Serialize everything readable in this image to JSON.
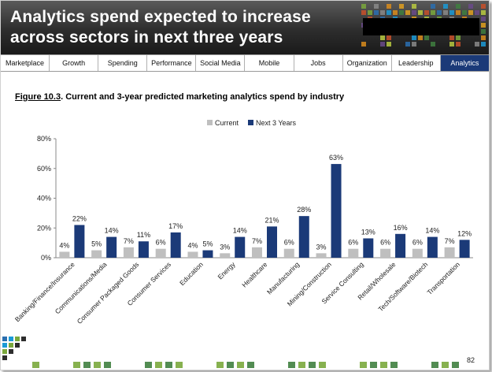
{
  "header": {
    "title_line1": "Analytics spend expected to increase",
    "title_line2": "across sectors in next three years"
  },
  "tabs": [
    {
      "label": "Marketplace",
      "active": false
    },
    {
      "label": "Growth",
      "active": false
    },
    {
      "label": "Spending",
      "active": false
    },
    {
      "label": "Performance",
      "active": false
    },
    {
      "label": "Social Media",
      "active": false
    },
    {
      "label": "Mobile",
      "active": false
    },
    {
      "label": "Jobs",
      "active": false
    },
    {
      "label": "Organization",
      "active": false
    },
    {
      "label": "Leadership",
      "active": false
    },
    {
      "label": "Analytics",
      "active": true
    }
  ],
  "figure": {
    "number": "Figure 10.3",
    "title": ". Current and 3-year predicted marketing analytics spend by industry"
  },
  "page_number": "82",
  "colors": {
    "current": "#bfbfbf",
    "next3": "#1b3a78",
    "header_dark": "#2d2d2d",
    "active_tab": "#1b3a78"
  },
  "chart_data": {
    "type": "bar",
    "categories": [
      "Banking/Finance/Insurance",
      "Communications/Media",
      "Consumer Packaged Goods",
      "Consumer Services",
      "Education",
      "Energy",
      "Healthcare",
      "Manufacturing",
      "Mining/Construction",
      "Service Consulting",
      "Retail/Wholesale",
      "Tech/Software/Biotech",
      "Transportation"
    ],
    "series": [
      {
        "name": "Current",
        "values": [
          4,
          5,
          7,
          6,
          4,
          3,
          7,
          6,
          3,
          6,
          6,
          6,
          7
        ],
        "labels": [
          "4%",
          "5%",
          "7%",
          "6%",
          "4%",
          "3%",
          "7%",
          "6%",
          "3%",
          "6%",
          "6%",
          "6%",
          "7%"
        ]
      },
      {
        "name": "Next 3 Years",
        "values": [
          22,
          14,
          11,
          17,
          5,
          14,
          21,
          28,
          63,
          13,
          16,
          14,
          12
        ],
        "labels": [
          "22%",
          "14%",
          "11%",
          "17%",
          "5%",
          "14%",
          "21%",
          "28%",
          "63%",
          "13%",
          "16%",
          "14%",
          "12%"
        ]
      }
    ],
    "yticks": [
      "0%",
      "20%",
      "40%",
      "60%",
      "80%"
    ],
    "ylim": [
      0,
      80
    ],
    "legend_position": "top-center",
    "grid": false
  }
}
